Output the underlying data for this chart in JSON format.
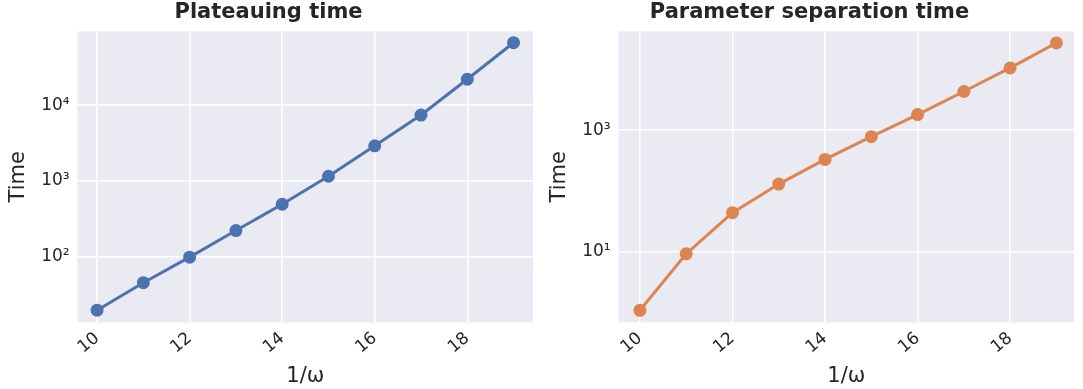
{
  "chart_data": [
    {
      "type": "line",
      "title": "Plateauing time",
      "xlabel": "1/ω",
      "ylabel": "Time",
      "x": [
        10,
        11,
        12,
        13,
        14,
        15,
        16,
        17,
        18,
        19
      ],
      "series": [
        {
          "color": "#4c72b0",
          "values": [
            19.5,
            45,
            98,
            220,
            490,
            1150,
            2900,
            7400,
            22000,
            67000
          ]
        }
      ],
      "log": "y",
      "grid": true,
      "marker": "circle",
      "line_style": "solid",
      "legend": false,
      "xlim": [
        9.58,
        19.42
      ],
      "xticks": [
        10,
        12,
        14,
        16,
        18
      ],
      "ylim": [
        13.5,
        95000
      ],
      "yticks": [
        {
          "value": 100,
          "label": "10²"
        },
        {
          "value": 1000,
          "label": "10³"
        },
        {
          "value": 10000,
          "label": "10⁴"
        }
      ]
    },
    {
      "type": "line",
      "title": "Parameter separation time",
      "xlabel": "1/ω",
      "ylabel": "Time",
      "x": [
        10,
        11,
        12,
        13,
        14,
        15,
        16,
        17,
        18,
        19
      ],
      "series": [
        {
          "color": "#dd8452",
          "values": [
            1.1,
            9.3,
            44,
            130,
            330,
            780,
            1800,
            4300,
            10500,
            27000
          ]
        }
      ],
      "log": "y",
      "grid": true,
      "marker": "circle",
      "line_style": "solid",
      "legend": false,
      "xlim": [
        9.54,
        19.38
      ],
      "xticks": [
        10,
        12,
        14,
        16,
        18
      ],
      "ylim": [
        0.73,
        42000
      ],
      "yticks": [
        {
          "value": 10,
          "label": "10¹"
        },
        {
          "value": 1000,
          "label": "10³"
        }
      ]
    }
  ]
}
